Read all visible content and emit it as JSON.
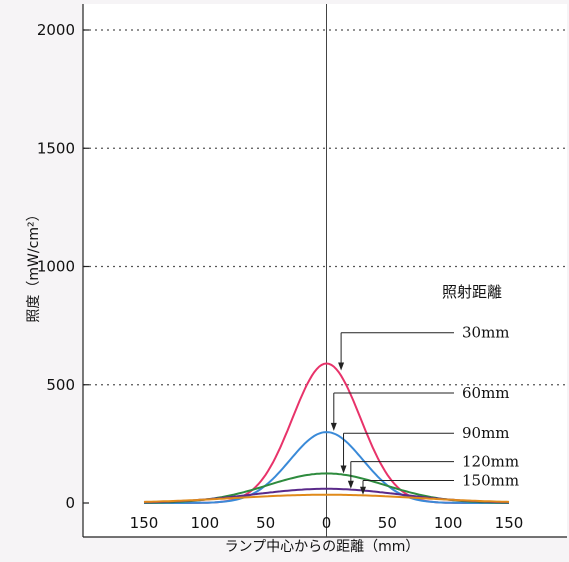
{
  "chart_data": {
    "type": "line",
    "title": "",
    "xlabel": "ランプ中心からの距離（mm）",
    "ylabel": "照度（mW/cm²）",
    "x_ticks": [
      -150,
      -100,
      -50,
      0,
      50,
      100,
      150
    ],
    "x_tick_labels": [
      "150",
      "100",
      "50",
      "0",
      "50",
      "100",
      "150"
    ],
    "xlim": [
      -150,
      150
    ],
    "y_ticks": [
      0,
      500,
      1000,
      1500,
      2000
    ],
    "y_tick_labels": [
      "0",
      "500",
      "1000",
      "1500",
      "2000"
    ],
    "ylim": [
      0,
      2000
    ],
    "grid": "horizontal dotted",
    "legend_title": "照射距離",
    "series": [
      {
        "name": "30mm",
        "color": "#e8336a",
        "peak": 590,
        "width": 28,
        "annotation": {
          "label_x": 140,
          "label_y": 720,
          "tip_x": 12,
          "tip_y": 560
        }
      },
      {
        "name": "60mm",
        "color": "#3a8ad8",
        "peak": 300,
        "width": 30,
        "annotation": {
          "label_x": 140,
          "label_y": 465,
          "tip_x": 6,
          "tip_y": 305
        }
      },
      {
        "name": "90mm",
        "color": "#2e8b3e",
        "peak": 125,
        "width": 48,
        "annotation": {
          "label_x": 140,
          "label_y": 295,
          "tip_x": 14,
          "tip_y": 125
        }
      },
      {
        "name": "120mm",
        "color": "#5a2a8a",
        "peak": 60,
        "width": 60,
        "annotation": {
          "label_x": 140,
          "label_y": 175,
          "tip_x": 20,
          "tip_y": 60
        }
      },
      {
        "name": "150mm",
        "color": "#e08a1a",
        "peak": 35,
        "width": 75,
        "annotation": {
          "label_x": 140,
          "label_y": 95,
          "tip_x": 30,
          "tip_y": 35
        }
      }
    ]
  }
}
